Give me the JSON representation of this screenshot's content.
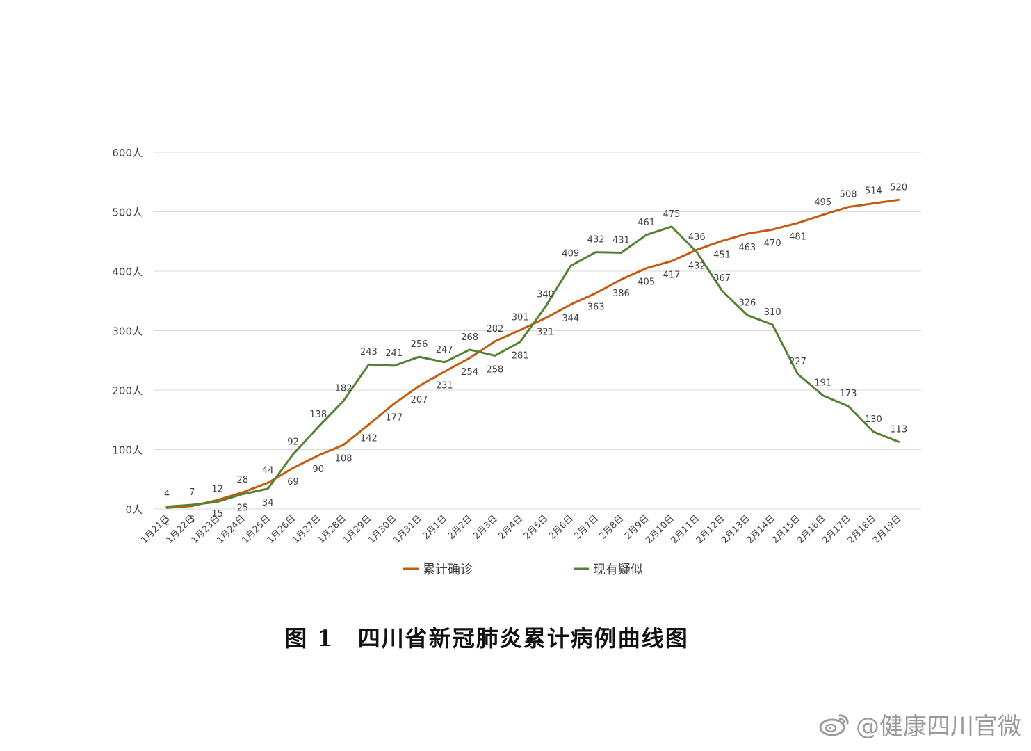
{
  "chart_data": {
    "type": "line",
    "title": "",
    "caption": "图 1　四川省新冠肺炎累计病例曲线图",
    "xlabel": "",
    "ylabel": "",
    "ylim": [
      0,
      600
    ],
    "yticks": [
      0,
      100,
      200,
      300,
      400,
      500,
      600
    ],
    "ytick_suffix": "人",
    "grid": true,
    "legend_position": "bottom",
    "categories": [
      "1月21日",
      "1月22日",
      "1月23日",
      "1月24日",
      "1月25日",
      "1月26日",
      "1月27日",
      "1月28日",
      "1月29日",
      "1月30日",
      "1月31日",
      "2月1日",
      "2月2日",
      "2月3日",
      "2月4日",
      "2月5日",
      "2月6日",
      "2月7日",
      "2月8日",
      "2月9日",
      "2月10日",
      "2月11日",
      "2月12日",
      "2月13日",
      "2月14日",
      "2月15日",
      "2月16日",
      "2月17日",
      "2月18日",
      "2月19日"
    ],
    "series": [
      {
        "name": "累计确诊",
        "color": "#c55a11",
        "values": [
          2,
          5,
          15,
          28,
          44,
          69,
          90,
          108,
          142,
          177,
          207,
          231,
          254,
          282,
          301,
          321,
          344,
          363,
          386,
          405,
          417,
          436,
          451,
          463,
          470,
          481,
          495,
          508,
          514,
          520
        ],
        "label_pos": [
          "below",
          "below",
          "below",
          "above",
          "above",
          "below",
          "below",
          "below",
          "below",
          "below",
          "below",
          "below",
          "below",
          "above",
          "above",
          "below",
          "below",
          "below",
          "below",
          "below",
          "below",
          "above",
          "below",
          "below",
          "below",
          "below",
          "above",
          "above",
          "above",
          "above"
        ]
      },
      {
        "name": "现有疑似",
        "color": "#548235",
        "values": [
          4,
          7,
          12,
          25,
          34,
          92,
          138,
          182,
          243,
          241,
          256,
          247,
          268,
          258,
          281,
          340,
          409,
          432,
          431,
          461,
          475,
          432,
          367,
          326,
          310,
          227,
          191,
          173,
          130,
          113
        ],
        "label_pos": [
          "above",
          "above",
          "above",
          "below",
          "below",
          "above",
          "above",
          "above",
          "above",
          "above",
          "above",
          "above",
          "above",
          "below",
          "below",
          "above",
          "above",
          "above",
          "above",
          "above",
          "above",
          "below",
          "above",
          "above",
          "above",
          "above",
          "above",
          "above",
          "above",
          "above"
        ]
      }
    ]
  },
  "watermark": {
    "text": "@健康四川官微",
    "icon": "weibo-logo"
  }
}
